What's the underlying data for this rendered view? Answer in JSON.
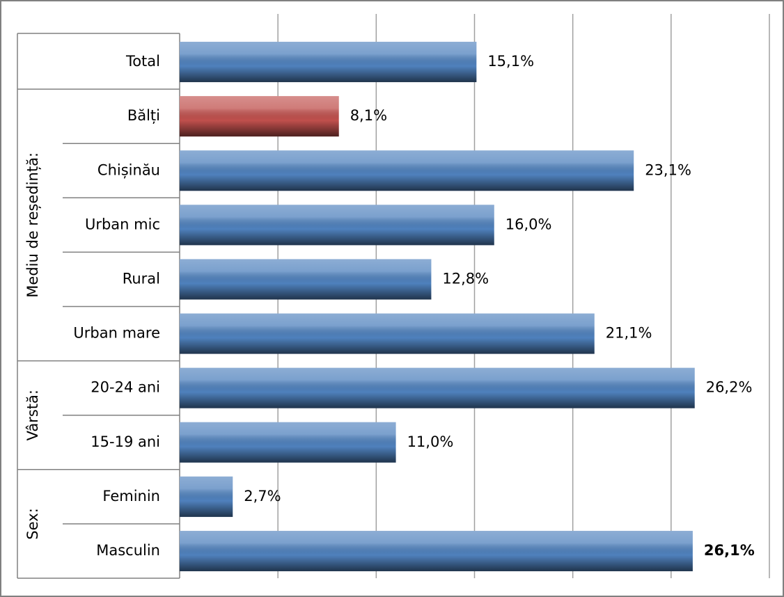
{
  "chart_data": {
    "type": "bar",
    "orientation": "horizontal",
    "categories": [
      "Total",
      "Bălți",
      "Chișinău",
      "Urban mic",
      "Rural",
      "Urban mare",
      "20-24 ani",
      "15-19 ani",
      "Feminin",
      "Masculin"
    ],
    "values": [
      15.1,
      8.1,
      23.1,
      16.0,
      12.8,
      21.1,
      26.2,
      11.0,
      2.7,
      26.1
    ],
    "value_labels": [
      "15,1%",
      "8,1%",
      "23,1%",
      "16,0%",
      "12,8%",
      "21,1%",
      "26,2%",
      "11,0%",
      "2,7%",
      "26,1%"
    ],
    "colors": [
      "#4f81bd",
      "#c0504d",
      "#4f81bd",
      "#4f81bd",
      "#4f81bd",
      "#4f81bd",
      "#4f81bd",
      "#4f81bd",
      "#4f81bd",
      "#4f81bd"
    ],
    "group_labels": [
      "Mediu de reședință:",
      "Vârstă:",
      "Sex:"
    ],
    "xlim": [
      0,
      30
    ],
    "xticks": [
      0,
      5,
      10,
      15,
      20,
      25,
      30
    ],
    "grid": true
  }
}
